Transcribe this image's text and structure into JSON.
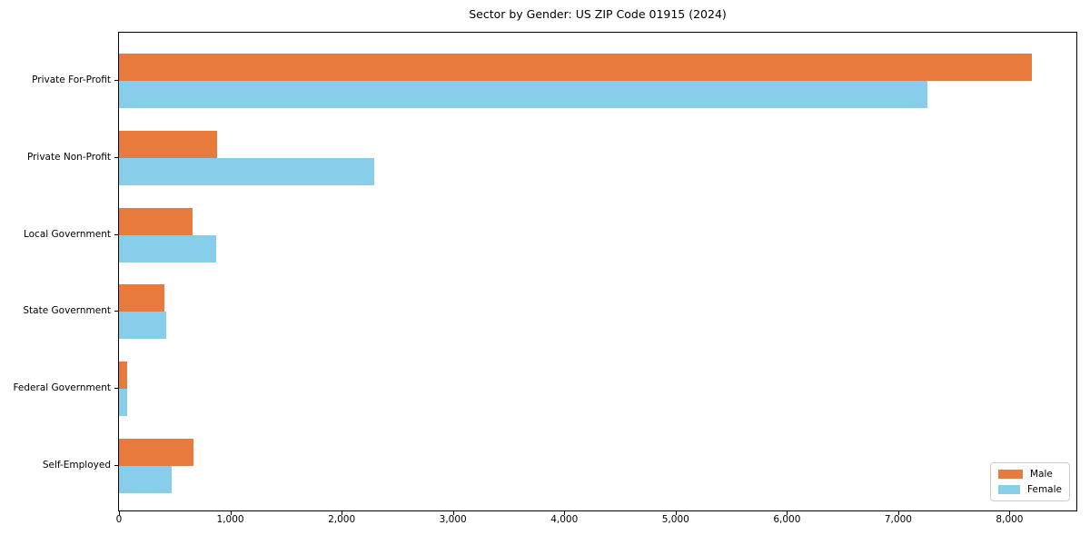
{
  "title": "Sector by Gender: US ZIP Code 01915 (2024)",
  "colors": {
    "male": "#e87a3c",
    "female": "#87ceeb",
    "axis": "#000000",
    "legend_border": "#cccccc"
  },
  "chart_data": {
    "type": "bar",
    "orientation": "horizontal",
    "title": "Sector by Gender: US ZIP Code 01915 (2024)",
    "categories": [
      "Private For-Profit",
      "Private Non-Profit",
      "Local Government",
      "State Government",
      "Federal Government",
      "Self-Employed"
    ],
    "series": [
      {
        "name": "Male",
        "color": "#e87a3c",
        "values": [
          8200,
          880,
          660,
          405,
          75,
          670
        ]
      },
      {
        "name": "Female",
        "color": "#87ceeb",
        "values": [
          7265,
          2290,
          875,
          425,
          70,
          470
        ]
      }
    ],
    "xlabel": "",
    "ylabel": "",
    "xlim": [
      0,
      8600
    ],
    "xticks": [
      0,
      1000,
      2000,
      3000,
      4000,
      5000,
      6000,
      7000,
      8000
    ],
    "xtick_labels": [
      "0",
      "1,000",
      "2,000",
      "3,000",
      "4,000",
      "5,000",
      "6,000",
      "7,000",
      "8,000"
    ],
    "grid": false,
    "legend_position": "lower right"
  }
}
